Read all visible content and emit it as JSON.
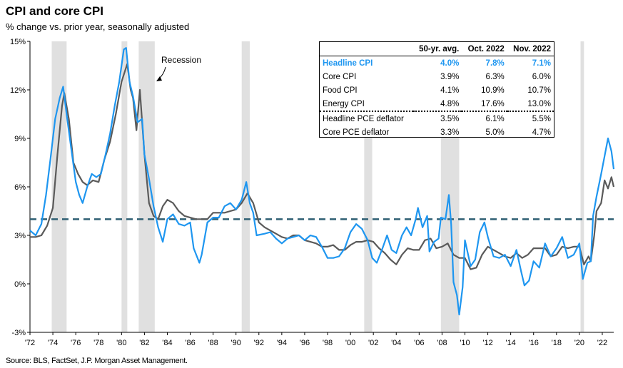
{
  "title": "CPI and core CPI",
  "subtitle": "% change vs. prior year, seasonally adjusted",
  "source": "Source: BLS, FactSet, J.P. Morgan Asset Management.",
  "annotation": "Recession",
  "colors": {
    "headline": "#1e96f0",
    "core": "#5a5a5a",
    "avg": "#2e5f73",
    "recession": "#e0e0e0"
  },
  "table": {
    "headers": [
      "",
      "50-yr. avg.",
      "Oct. 2022",
      "Nov. 2022"
    ],
    "rows": [
      {
        "label": "Headline CPI",
        "avg": "4.0%",
        "oct": "7.8%",
        "nov": "7.1%"
      },
      {
        "label": "Core CPI",
        "avg": "3.9%",
        "oct": "6.3%",
        "nov": "6.0%"
      },
      {
        "label": "Food CPI",
        "avg": "4.1%",
        "oct": "10.9%",
        "nov": "10.7%"
      },
      {
        "label": "Energy CPI",
        "avg": "4.8%",
        "oct": "17.6%",
        "nov": "13.0%"
      },
      {
        "label": "Headline PCE deflator",
        "avg": "3.5%",
        "oct": "6.1%",
        "nov": "5.5%"
      },
      {
        "label": "Core PCE deflator",
        "avg": "3.3%",
        "oct": "5.0%",
        "nov": "4.7%"
      }
    ]
  },
  "chart_data": {
    "type": "line",
    "xlim": [
      1972,
      2023
    ],
    "ylim": [
      -3,
      15
    ],
    "yticks": [
      "15%",
      "12%",
      "9%",
      "6%",
      "3%",
      "0%",
      "-3%"
    ],
    "ytick_values": [
      15,
      12,
      9,
      6,
      3,
      0,
      -3
    ],
    "xticks": [
      "'72",
      "'74",
      "'76",
      "'78",
      "'80",
      "'82",
      "'84",
      "'86",
      "'88",
      "'90",
      "'92",
      "'94",
      "'96",
      "'98",
      "'00",
      "'02",
      "'04",
      "'06",
      "'08",
      "'10",
      "'12",
      "'14",
      "'16",
      "'18",
      "'20",
      "'22"
    ],
    "xtick_values": [
      1972,
      1974,
      1976,
      1978,
      1980,
      1982,
      1984,
      1986,
      1988,
      1990,
      1992,
      1994,
      1996,
      1998,
      2000,
      2002,
      2004,
      2006,
      2008,
      2010,
      2012,
      2014,
      2016,
      2018,
      2020,
      2022
    ],
    "average_line": 4.0,
    "recessions": [
      [
        1973.9,
        1975.2
      ],
      [
        1980.0,
        1980.5
      ],
      [
        1981.5,
        1982.9
      ],
      [
        1990.5,
        1991.2
      ],
      [
        2001.2,
        2001.9
      ],
      [
        2007.9,
        2009.5
      ],
      [
        2020.1,
        2020.4
      ]
    ],
    "series": [
      {
        "name": "Headline CPI",
        "points": [
          [
            1972,
            3.3
          ],
          [
            1972.5,
            3.0
          ],
          [
            1973,
            3.7
          ],
          [
            1973.4,
            5.5
          ],
          [
            1973.8,
            7.8
          ],
          [
            1974.2,
            10.2
          ],
          [
            1974.6,
            11.5
          ],
          [
            1974.9,
            12.2
          ],
          [
            1975.2,
            10.5
          ],
          [
            1975.6,
            8.4
          ],
          [
            1976,
            6.3
          ],
          [
            1976.3,
            5.5
          ],
          [
            1976.6,
            5.0
          ],
          [
            1977,
            6.0
          ],
          [
            1977.4,
            6.8
          ],
          [
            1977.8,
            6.6
          ],
          [
            1978.2,
            6.8
          ],
          [
            1978.6,
            8.0
          ],
          [
            1979,
            9.3
          ],
          [
            1979.4,
            11.0
          ],
          [
            1979.8,
            12.5
          ],
          [
            1980.2,
            14.5
          ],
          [
            1980.4,
            14.6
          ],
          [
            1980.7,
            12.5
          ],
          [
            1981,
            11.6
          ],
          [
            1981.4,
            10.0
          ],
          [
            1981.8,
            10.2
          ],
          [
            1982,
            8.0
          ],
          [
            1982.4,
            6.5
          ],
          [
            1982.8,
            4.8
          ],
          [
            1983.2,
            3.5
          ],
          [
            1983.6,
            2.6
          ],
          [
            1984,
            4.0
          ],
          [
            1984.5,
            4.3
          ],
          [
            1985,
            3.7
          ],
          [
            1985.5,
            3.6
          ],
          [
            1986,
            3.8
          ],
          [
            1986.3,
            2.2
          ],
          [
            1986.8,
            1.3
          ],
          [
            1987,
            1.8
          ],
          [
            1987.5,
            3.8
          ],
          [
            1988,
            4.1
          ],
          [
            1988.5,
            4.1
          ],
          [
            1989,
            4.8
          ],
          [
            1989.5,
            5.0
          ],
          [
            1990,
            4.6
          ],
          [
            1990.5,
            5.2
          ],
          [
            1990.9,
            6.3
          ],
          [
            1991.2,
            5.0
          ],
          [
            1991.5,
            4.4
          ],
          [
            1991.8,
            3.0
          ],
          [
            1992.5,
            3.1
          ],
          [
            1993,
            3.2
          ],
          [
            1993.5,
            2.8
          ],
          [
            1994,
            2.5
          ],
          [
            1994.5,
            2.8
          ],
          [
            1995,
            2.9
          ],
          [
            1995.5,
            3.0
          ],
          [
            1996,
            2.7
          ],
          [
            1996.5,
            3.0
          ],
          [
            1997,
            2.9
          ],
          [
            1997.5,
            2.3
          ],
          [
            1998,
            1.6
          ],
          [
            1998.5,
            1.6
          ],
          [
            1999,
            1.7
          ],
          [
            1999.5,
            2.2
          ],
          [
            2000,
            3.2
          ],
          [
            2000.5,
            3.7
          ],
          [
            2001,
            3.4
          ],
          [
            2001.5,
            2.7
          ],
          [
            2001.9,
            1.6
          ],
          [
            2002.3,
            1.3
          ],
          [
            2002.8,
            2.2
          ],
          [
            2003.2,
            3.0
          ],
          [
            2003.6,
            2.1
          ],
          [
            2004,
            1.9
          ],
          [
            2004.5,
            3.0
          ],
          [
            2004.9,
            3.5
          ],
          [
            2005.3,
            3.0
          ],
          [
            2005.7,
            4.0
          ],
          [
            2005.9,
            4.7
          ],
          [
            2006.3,
            3.5
          ],
          [
            2006.7,
            4.2
          ],
          [
            2006.9,
            2.0
          ],
          [
            2007.3,
            2.6
          ],
          [
            2007.7,
            2.8
          ],
          [
            2007.9,
            4.1
          ],
          [
            2008.3,
            4.0
          ],
          [
            2008.6,
            5.5
          ],
          [
            2008.8,
            3.7
          ],
          [
            2009,
            0.1
          ],
          [
            2009.3,
            -0.7
          ],
          [
            2009.5,
            -1.9
          ],
          [
            2009.8,
            -0.2
          ],
          [
            2010,
            2.7
          ],
          [
            2010.5,
            1.1
          ],
          [
            2010.9,
            1.5
          ],
          [
            2011.3,
            3.2
          ],
          [
            2011.7,
            3.8
          ],
          [
            2012,
            2.9
          ],
          [
            2012.5,
            1.7
          ],
          [
            2013,
            1.6
          ],
          [
            2013.5,
            1.8
          ],
          [
            2014,
            1.1
          ],
          [
            2014.5,
            2.1
          ],
          [
            2014.9,
            0.8
          ],
          [
            2015.2,
            -0.1
          ],
          [
            2015.6,
            0.2
          ],
          [
            2016,
            1.4
          ],
          [
            2016.5,
            1.0
          ],
          [
            2017,
            2.5
          ],
          [
            2017.5,
            1.7
          ],
          [
            2018,
            2.2
          ],
          [
            2018.5,
            2.9
          ],
          [
            2019,
            1.6
          ],
          [
            2019.5,
            1.8
          ],
          [
            2020,
            2.5
          ],
          [
            2020.3,
            0.3
          ],
          [
            2020.7,
            1.3
          ],
          [
            2021,
            1.4
          ],
          [
            2021.2,
            4.2
          ],
          [
            2021.5,
            5.4
          ],
          [
            2021.9,
            6.8
          ],
          [
            2022.2,
            7.9
          ],
          [
            2022.5,
            9.0
          ],
          [
            2022.8,
            8.2
          ],
          [
            2023,
            7.1
          ]
        ]
      },
      {
        "name": "Core CPI",
        "points": [
          [
            1972,
            2.9
          ],
          [
            1972.5,
            2.9
          ],
          [
            1973,
            3.0
          ],
          [
            1973.5,
            3.6
          ],
          [
            1974,
            4.7
          ],
          [
            1974.4,
            8.0
          ],
          [
            1974.8,
            11.0
          ],
          [
            1975,
            11.8
          ],
          [
            1975.4,
            10.2
          ],
          [
            1975.8,
            7.5
          ],
          [
            1976.2,
            6.8
          ],
          [
            1976.6,
            6.3
          ],
          [
            1977,
            6.1
          ],
          [
            1977.5,
            6.4
          ],
          [
            1978,
            6.3
          ],
          [
            1978.5,
            7.7
          ],
          [
            1979,
            8.8
          ],
          [
            1979.5,
            10.5
          ],
          [
            1980,
            12.5
          ],
          [
            1980.5,
            13.6
          ],
          [
            1980.8,
            12.0
          ],
          [
            1981,
            11.5
          ],
          [
            1981.3,
            9.5
          ],
          [
            1981.6,
            12.0
          ],
          [
            1982,
            8.0
          ],
          [
            1982.4,
            5.0
          ],
          [
            1982.8,
            4.2
          ],
          [
            1983.2,
            4.0
          ],
          [
            1983.6,
            4.8
          ],
          [
            1984,
            5.2
          ],
          [
            1984.5,
            5.0
          ],
          [
            1985,
            4.5
          ],
          [
            1985.5,
            4.2
          ],
          [
            1986,
            4.1
          ],
          [
            1986.5,
            4.0
          ],
          [
            1987,
            4.0
          ],
          [
            1987.5,
            4.0
          ],
          [
            1988,
            4.4
          ],
          [
            1988.5,
            4.4
          ],
          [
            1989,
            4.4
          ],
          [
            1989.5,
            4.5
          ],
          [
            1990,
            4.6
          ],
          [
            1990.5,
            5.0
          ],
          [
            1991,
            5.6
          ],
          [
            1991.5,
            5.0
          ],
          [
            1992,
            3.8
          ],
          [
            1992.5,
            3.5
          ],
          [
            1993,
            3.3
          ],
          [
            1993.5,
            3.1
          ],
          [
            1994,
            2.9
          ],
          [
            1994.5,
            2.8
          ],
          [
            1995,
            3.0
          ],
          [
            1995.5,
            3.0
          ],
          [
            1996,
            2.7
          ],
          [
            1996.5,
            2.6
          ],
          [
            1997,
            2.5
          ],
          [
            1997.5,
            2.3
          ],
          [
            1998,
            2.3
          ],
          [
            1998.5,
            2.4
          ],
          [
            1999,
            2.1
          ],
          [
            1999.5,
            2.1
          ],
          [
            2000,
            2.4
          ],
          [
            2000.5,
            2.6
          ],
          [
            2001,
            2.6
          ],
          [
            2001.5,
            2.7
          ],
          [
            2002,
            2.6
          ],
          [
            2002.5,
            2.2
          ],
          [
            2003,
            1.9
          ],
          [
            2003.5,
            1.5
          ],
          [
            2004,
            1.2
          ],
          [
            2004.5,
            1.8
          ],
          [
            2005,
            2.2
          ],
          [
            2005.5,
            2.1
          ],
          [
            2006,
            2.1
          ],
          [
            2006.5,
            2.7
          ],
          [
            2007,
            2.8
          ],
          [
            2007.5,
            2.2
          ],
          [
            2008,
            2.3
          ],
          [
            2008.5,
            2.5
          ],
          [
            2009,
            1.8
          ],
          [
            2009.5,
            1.6
          ],
          [
            2010,
            1.6
          ],
          [
            2010.5,
            0.9
          ],
          [
            2011,
            1.0
          ],
          [
            2011.5,
            1.8
          ],
          [
            2012,
            2.3
          ],
          [
            2012.5,
            2.1
          ],
          [
            2013,
            1.9
          ],
          [
            2013.5,
            1.7
          ],
          [
            2014,
            1.6
          ],
          [
            2014.5,
            1.9
          ],
          [
            2015,
            1.6
          ],
          [
            2015.5,
            1.8
          ],
          [
            2016,
            2.2
          ],
          [
            2016.5,
            2.2
          ],
          [
            2017,
            2.2
          ],
          [
            2017.5,
            1.7
          ],
          [
            2018,
            1.8
          ],
          [
            2018.5,
            2.3
          ],
          [
            2019,
            2.2
          ],
          [
            2019.5,
            2.3
          ],
          [
            2020,
            2.3
          ],
          [
            2020.4,
            1.2
          ],
          [
            2020.8,
            1.7
          ],
          [
            2021,
            1.4
          ],
          [
            2021.3,
            3.0
          ],
          [
            2021.5,
            4.5
          ],
          [
            2021.9,
            5.0
          ],
          [
            2022.2,
            6.4
          ],
          [
            2022.5,
            5.9
          ],
          [
            2022.8,
            6.6
          ],
          [
            2023,
            6.0
          ]
        ]
      }
    ]
  }
}
